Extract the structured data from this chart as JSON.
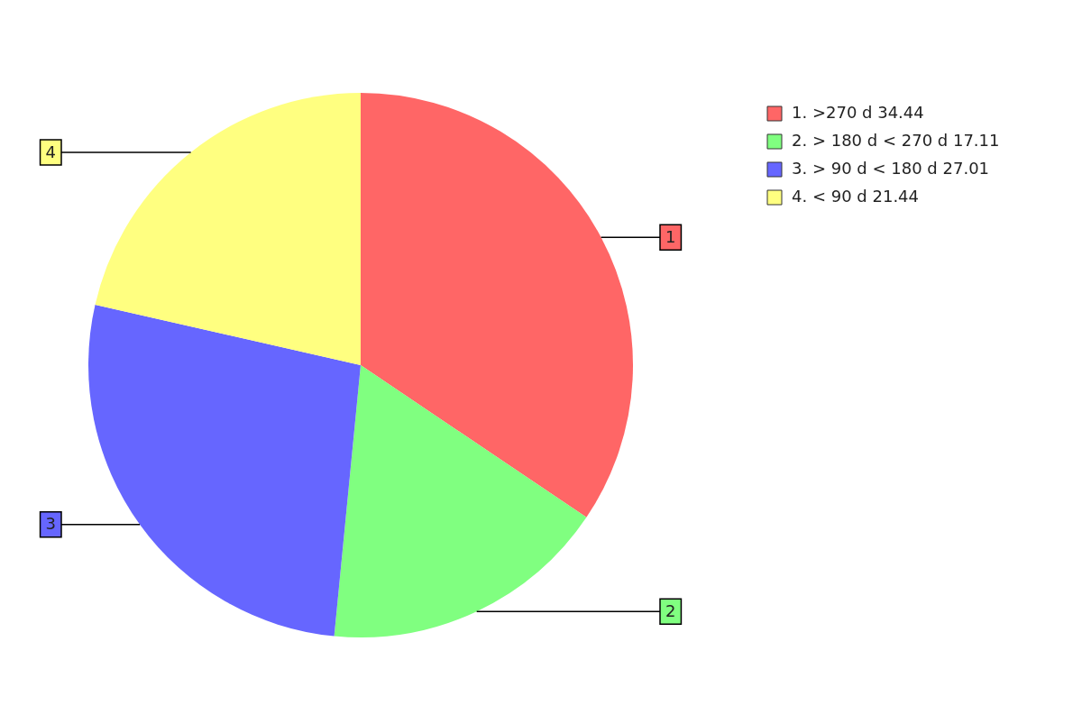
{
  "chart_data": {
    "type": "pie",
    "categories": [
      "1. >270 d 34.44",
      "2. > 180 d < 270 d 17.11",
      "3. > 90 d < 180 d 27.01",
      "4. < 90 d 21.44"
    ],
    "values": [
      34.44,
      17.11,
      27.01,
      21.44
    ],
    "annotations": [
      "1",
      "2",
      "3",
      "4"
    ],
    "colors": [
      "#ff6666",
      "#80ff80",
      "#6666ff",
      "#ffff80"
    ],
    "legend": "top right"
  }
}
